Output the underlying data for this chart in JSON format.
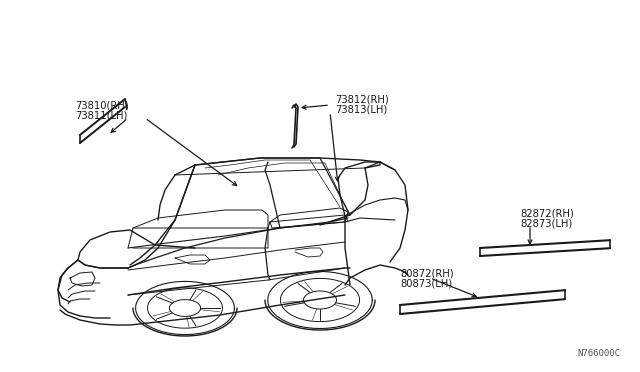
{
  "bg_color": "#ffffff",
  "line_color": "#1a1a1a",
  "text_color": "#1a1a1a",
  "diagram_code": "N766000C",
  "fig_w": 6.4,
  "fig_h": 3.72,
  "dpi": 100,
  "labels": {
    "roof_rh": "73810(RH)",
    "roof_lh": "73811(LH)",
    "pillar_rh": "73812(RH)",
    "pillar_lh": "73813(LH)",
    "front_door_rh": "80872(RH)",
    "front_door_lh": "80873(LH)",
    "rear_door_rh": "82872(RH)",
    "rear_door_lh": "82873(LH)"
  }
}
